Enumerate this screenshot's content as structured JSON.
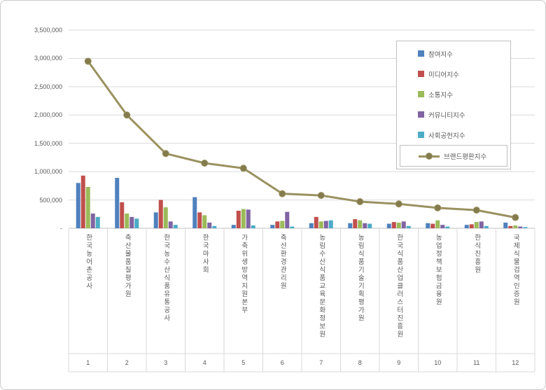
{
  "chart_data": {
    "type": "bar",
    "subtype": "grouped-bars-with-line-overlay",
    "title": "",
    "grid": true,
    "legend_position": "top-right",
    "categories": [
      {
        "rank": "1",
        "name": "한국농어촌공사"
      },
      {
        "rank": "2",
        "name": "축산물품질평가원"
      },
      {
        "rank": "3",
        "name": "한국농수산식품유통공사"
      },
      {
        "rank": "4",
        "name": "한국마사회"
      },
      {
        "rank": "5",
        "name": "가축위생방역지원본부"
      },
      {
        "rank": "6",
        "name": "축산환경관리원"
      },
      {
        "rank": "7",
        "name": "농림수산식품교육문화정보원"
      },
      {
        "rank": "8",
        "name": "농림식품기술기획평가원"
      },
      {
        "rank": "9",
        "name": "한국식품산업클러스터진흥원"
      },
      {
        "rank": "10",
        "name": "농업정책보험금융원"
      },
      {
        "rank": "11",
        "name": "한식진흥원"
      },
      {
        "rank": "12",
        "name": "국제식물검역인증원"
      }
    ],
    "bar_series": [
      {
        "name": "참여지수",
        "color": "#4F81BD",
        "values": [
          800000,
          890000,
          280000,
          550000,
          60000,
          60000,
          90000,
          90000,
          80000,
          90000,
          60000,
          100000
        ]
      },
      {
        "name": "미디어지수",
        "color": "#C0504D",
        "values": [
          930000,
          460000,
          500000,
          280000,
          310000,
          120000,
          200000,
          160000,
          110000,
          80000,
          70000,
          40000
        ]
      },
      {
        "name": "소통지수",
        "color": "#9BBB59",
        "values": [
          730000,
          260000,
          370000,
          230000,
          340000,
          130000,
          120000,
          140000,
          100000,
          140000,
          110000,
          50000
        ]
      },
      {
        "name": "커뮤니티지수",
        "color": "#8064A2",
        "values": [
          260000,
          200000,
          120000,
          100000,
          330000,
          290000,
          130000,
          90000,
          120000,
          60000,
          120000,
          30000
        ]
      },
      {
        "name": "사회공헌지수",
        "color": "#4BACC6",
        "values": [
          200000,
          170000,
          60000,
          40000,
          50000,
          30000,
          140000,
          80000,
          40000,
          30000,
          40000,
          20000
        ]
      }
    ],
    "line_series": {
      "name": "브랜드평판지수",
      "color": "#9A9160",
      "marker_color": "#847B4D",
      "values": [
        2950000,
        2000000,
        1320000,
        1150000,
        1060000,
        610000,
        580000,
        470000,
        430000,
        360000,
        320000,
        190000
      ]
    },
    "y_axis": {
      "min": 0,
      "max": 3500000,
      "step": 500000,
      "tick_labels": [
        "-",
        "500,000",
        "1,000,000",
        "1,500,000",
        "2,000,000",
        "2,500,000",
        "3,000,000",
        "3,500,000"
      ]
    }
  }
}
